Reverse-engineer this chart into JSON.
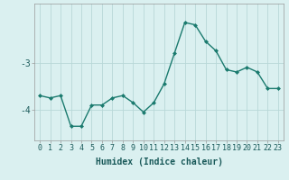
{
  "x": [
    0,
    1,
    2,
    3,
    4,
    5,
    6,
    7,
    8,
    9,
    10,
    11,
    12,
    13,
    14,
    15,
    16,
    17,
    18,
    19,
    20,
    21,
    22,
    23
  ],
  "y": [
    -3.7,
    -3.75,
    -3.7,
    -4.35,
    -4.35,
    -3.9,
    -3.9,
    -3.75,
    -3.7,
    -3.85,
    -4.05,
    -3.85,
    -3.45,
    -2.8,
    -2.15,
    -2.2,
    -2.55,
    -2.75,
    -3.15,
    -3.2,
    -3.1,
    -3.2,
    -3.55,
    -3.55
  ],
  "line_color": "#1a7a6e",
  "marker": "D",
  "markersize": 2.0,
  "linewidth": 1.0,
  "xlabel": "Humidex (Indice chaleur)",
  "xlabel_fontsize": 7,
  "yticks": [
    -4,
    -3
  ],
  "ylim": [
    -4.65,
    -1.75
  ],
  "xlim": [
    -0.5,
    23.5
  ],
  "bg_color": "#daf0f0",
  "grid_color": "#b8d8d8",
  "tick_fontsize": 6,
  "title": ""
}
